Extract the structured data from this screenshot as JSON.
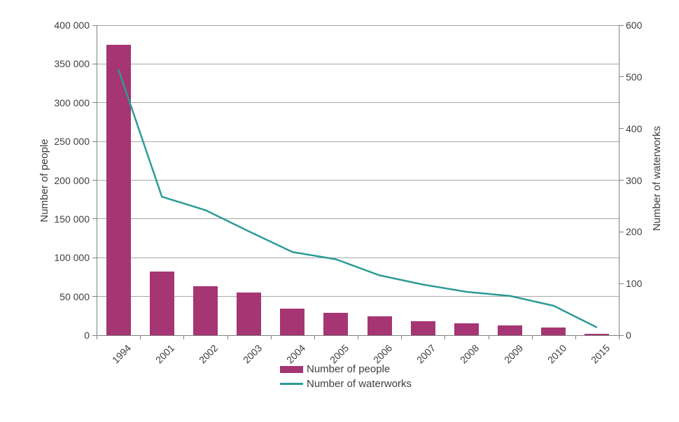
{
  "chart_data": {
    "type": "combo-bar-line",
    "title": "",
    "categories": [
      "1994",
      "2001",
      "2002",
      "2003",
      "2004",
      "2005",
      "2006",
      "2007",
      "2008",
      "2009",
      "2010",
      "2015"
    ],
    "series": [
      {
        "name": "Number of people",
        "type": "bar",
        "axis": "left",
        "color": "#A63573",
        "values": [
          375000,
          82000,
          63000,
          55000,
          34000,
          28500,
          24000,
          18000,
          15500,
          12500,
          10000,
          2000
        ]
      },
      {
        "name": "Number of waterworks",
        "type": "line",
        "axis": "right",
        "color": "#2B9B95",
        "values": [
          515,
          268,
          242,
          201,
          161,
          147,
          116,
          98,
          84,
          76,
          57,
          15
        ]
      }
    ],
    "left_axis": {
      "title": "Number of people",
      "min": 0,
      "max": 400000,
      "tick_step": 50000,
      "tick_labels": [
        "0",
        "50 000",
        "100 000",
        "150 000",
        "200 000",
        "250 000",
        "300 000",
        "350 000",
        "400 000"
      ]
    },
    "right_axis": {
      "title": "Number of waterworks",
      "min": 0,
      "max": 600,
      "tick_step": 100,
      "tick_labels": [
        "0",
        "100",
        "200",
        "300",
        "400",
        "500",
        "600"
      ]
    },
    "grid": true,
    "legend": {
      "position": "bottom-center",
      "entries": [
        "Number of people",
        "Number of waterworks"
      ]
    }
  },
  "colors": {
    "bar": "#A63573",
    "line": "#2B9B95",
    "gridline": "#A6A6A6",
    "axis_line": "#808080",
    "text": "#3F3F3F",
    "background": "#FFFFFF"
  }
}
